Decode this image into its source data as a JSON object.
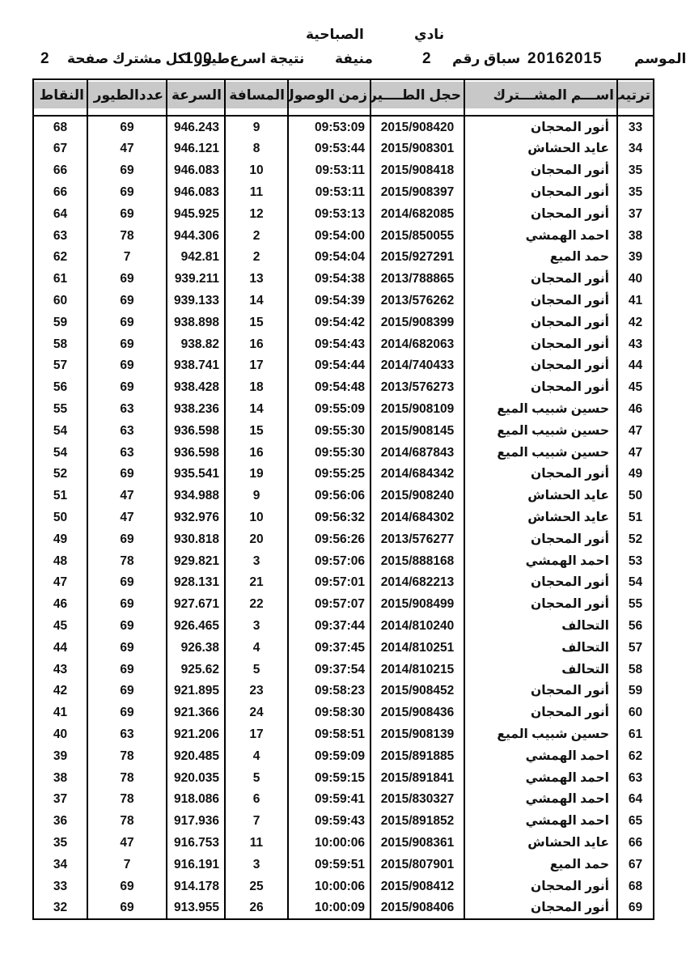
{
  "page_header": {
    "club_label": "نادي",
    "club_name": "الصباحية",
    "season_label": "الموسم",
    "season_value": "20162015",
    "race_label": "سباق رقم",
    "race_number": "2",
    "location": "منيفة",
    "result_label": "نتيجة اسرع",
    "result_count": "100",
    "result_suffix": "طيور لكل مشترك صفحة",
    "page_number": "2"
  },
  "table": {
    "columns": [
      {
        "key": "rank",
        "label": "ترتيب"
      },
      {
        "key": "name",
        "label": "اســـم المشـــترك"
      },
      {
        "key": "ring",
        "label": "حجل الطــــير"
      },
      {
        "key": "time",
        "label": "زمن الوصول"
      },
      {
        "key": "distance",
        "label": "المسافة"
      },
      {
        "key": "speed",
        "label": "السرعة"
      },
      {
        "key": "birds",
        "label": "عددالطيور"
      },
      {
        "key": "points",
        "label": "النقاط"
      }
    ],
    "rows": [
      [
        "33",
        "أنور المحجان",
        "2015/908420",
        "09:53:09",
        "9",
        "946.243",
        "69",
        "68"
      ],
      [
        "34",
        "عايد الحشاش",
        "2015/908301",
        "09:53:44",
        "8",
        "946.121",
        "47",
        "67"
      ],
      [
        "35",
        "أنور المحجان",
        "2015/908418",
        "09:53:11",
        "10",
        "946.083",
        "69",
        "66"
      ],
      [
        "35",
        "أنور المحجان",
        "2015/908397",
        "09:53:11",
        "11",
        "946.083",
        "69",
        "66"
      ],
      [
        "37",
        "أنور المحجان",
        "2014/682085",
        "09:53:13",
        "12",
        "945.925",
        "69",
        "64"
      ],
      [
        "38",
        "احمد الهمشي",
        "2015/850055",
        "09:54:00",
        "2",
        "944.306",
        "78",
        "63"
      ],
      [
        "39",
        "حمد الميع",
        "2015/927291",
        "09:54:04",
        "2",
        "942.81",
        "7",
        "62"
      ],
      [
        "40",
        "أنور المحجان",
        "2013/788865",
        "09:54:38",
        "13",
        "939.211",
        "69",
        "61"
      ],
      [
        "41",
        "أنور المحجان",
        "2013/576262",
        "09:54:39",
        "14",
        "939.133",
        "69",
        "60"
      ],
      [
        "42",
        "أنور المحجان",
        "2015/908399",
        "09:54:42",
        "15",
        "938.898",
        "69",
        "59"
      ],
      [
        "43",
        "أنور المحجان",
        "2014/682063",
        "09:54:43",
        "16",
        "938.82",
        "69",
        "58"
      ],
      [
        "44",
        "أنور المحجان",
        "2014/740433",
        "09:54:44",
        "17",
        "938.741",
        "69",
        "57"
      ],
      [
        "45",
        "أنور المحجان",
        "2013/576273",
        "09:54:48",
        "18",
        "938.428",
        "69",
        "56"
      ],
      [
        "46",
        "حسين شبيب الميع",
        "2015/908109",
        "09:55:09",
        "14",
        "938.236",
        "63",
        "55"
      ],
      [
        "47",
        "حسين شبيب الميع",
        "2015/908145",
        "09:55:30",
        "15",
        "936.598",
        "63",
        "54"
      ],
      [
        "47",
        "حسين شبيب الميع",
        "2014/687843",
        "09:55:30",
        "16",
        "936.598",
        "63",
        "54"
      ],
      [
        "49",
        "أنور المحجان",
        "2014/684342",
        "09:55:25",
        "19",
        "935.541",
        "69",
        "52"
      ],
      [
        "50",
        "عايد الحشاش",
        "2015/908240",
        "09:56:06",
        "9",
        "934.988",
        "47",
        "51"
      ],
      [
        "51",
        "عايد الحشاش",
        "2014/684302",
        "09:56:32",
        "10",
        "932.976",
        "47",
        "50"
      ],
      [
        "52",
        "أنور المحجان",
        "2013/576277",
        "09:56:26",
        "20",
        "930.818",
        "69",
        "49"
      ],
      [
        "53",
        "احمد الهمشي",
        "2015/888168",
        "09:57:06",
        "3",
        "929.821",
        "78",
        "48"
      ],
      [
        "54",
        "أنور المحجان",
        "2014/682213",
        "09:57:01",
        "21",
        "928.131",
        "69",
        "47"
      ],
      [
        "55",
        "أنور المحجان",
        "2015/908499",
        "09:57:07",
        "22",
        "927.671",
        "69",
        "46"
      ],
      [
        "56",
        "التحالف",
        "2014/810240",
        "09:37:44",
        "3",
        "926.465",
        "69",
        "45"
      ],
      [
        "57",
        "التحالف",
        "2014/810251",
        "09:37:45",
        "4",
        "926.38",
        "69",
        "44"
      ],
      [
        "58",
        "التحالف",
        "2014/810215",
        "09:37:54",
        "5",
        "925.62",
        "69",
        "43"
      ],
      [
        "59",
        "أنور المحجان",
        "2015/908452",
        "09:58:23",
        "23",
        "921.895",
        "69",
        "42"
      ],
      [
        "60",
        "أنور المحجان",
        "2015/908436",
        "09:58:30",
        "24",
        "921.366",
        "69",
        "41"
      ],
      [
        "61",
        "حسين شبيب الميع",
        "2015/908139",
        "09:58:51",
        "17",
        "921.206",
        "63",
        "40"
      ],
      [
        "62",
        "احمد الهمشي",
        "2015/891885",
        "09:59:09",
        "4",
        "920.485",
        "78",
        "39"
      ],
      [
        "63",
        "احمد الهمشي",
        "2015/891841",
        "09:59:15",
        "5",
        "920.035",
        "78",
        "38"
      ],
      [
        "64",
        "احمد الهمشي",
        "2015/830327",
        "09:59:41",
        "6",
        "918.086",
        "78",
        "37"
      ],
      [
        "65",
        "احمد الهمشي",
        "2015/891852",
        "09:59:43",
        "7",
        "917.936",
        "78",
        "36"
      ],
      [
        "66",
        "عايد الحشاش",
        "2015/908361",
        "10:00:06",
        "11",
        "916.753",
        "47",
        "35"
      ],
      [
        "67",
        "حمد الميع",
        "2015/807901",
        "09:59:51",
        "3",
        "916.191",
        "7",
        "34"
      ],
      [
        "68",
        "أنور المحجان",
        "2015/908412",
        "10:00:06",
        "25",
        "914.178",
        "69",
        "33"
      ],
      [
        "69",
        "أنور المحجان",
        "2015/908406",
        "10:00:09",
        "26",
        "913.955",
        "69",
        "32"
      ]
    ]
  }
}
